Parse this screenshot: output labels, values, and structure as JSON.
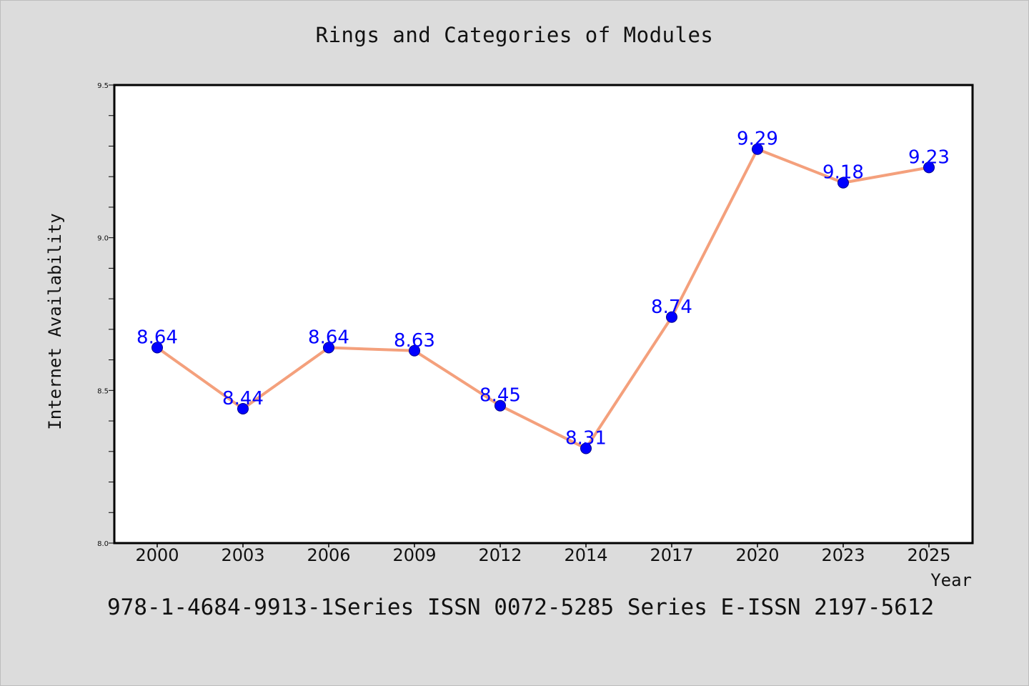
{
  "chart_data": {
    "type": "line",
    "title": "Rings and Categories of Modules",
    "xlabel": "Year",
    "ylabel": "Internet Availability",
    "categories": [
      "2000",
      "2003",
      "2006",
      "2009",
      "2012",
      "2014",
      "2017",
      "2020",
      "2023",
      "2025"
    ],
    "series": [
      {
        "values": [
          8.64,
          8.44,
          8.64,
          8.63,
          8.45,
          8.31,
          8.74,
          9.29,
          9.18,
          9.23
        ],
        "line_color": "#f4a07c",
        "marker_color": "#0000ff"
      }
    ],
    "data_labels": [
      "8.64",
      "8.44",
      "8.64",
      "8.63",
      "8.45",
      "8.31",
      "8.74",
      "9.29",
      "9.18",
      "9.23"
    ],
    "ylim": [
      8.0,
      9.5
    ],
    "y_ticks": [
      "8.0",
      "8.5",
      "9.0",
      "9.5"
    ],
    "y_tick_values": [
      8.0,
      8.5,
      9.0,
      9.5
    ],
    "y_minor_step": 0.1,
    "grid": false,
    "legend": "none"
  },
  "footer": {
    "text": "978-1-4684-9913-1Series ISSN 0072-5285 Series E-ISSN 2197-5612"
  },
  "colors": {
    "background": "#dcdcdc",
    "plot_background": "#ffffff",
    "line": "#f4a07c",
    "marker": "#0000ff",
    "label": "#0000ff"
  }
}
